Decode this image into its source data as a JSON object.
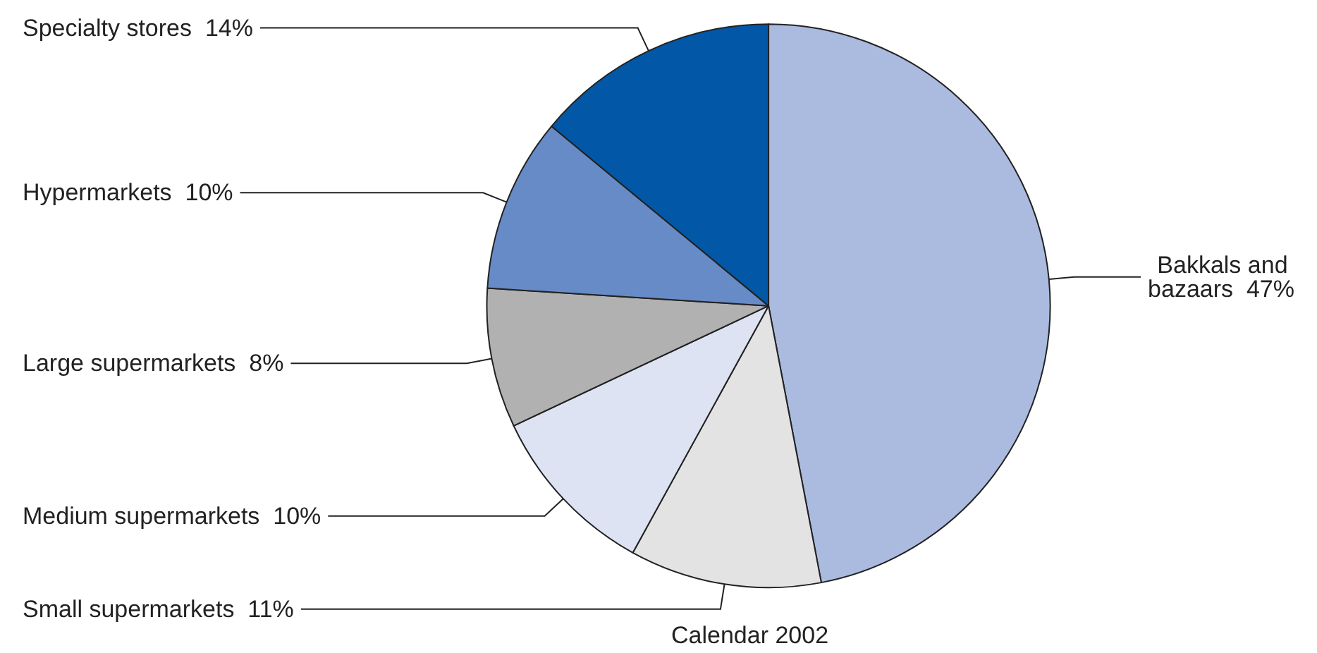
{
  "chart_data": {
    "type": "pie",
    "categories": [
      "Bakkals and bazaars",
      "Small supermarkets",
      "Medium supermarkets",
      "Large supermarkets",
      "Hypermarkets",
      "Specialty stores"
    ],
    "values": [
      47,
      11,
      10,
      8,
      10,
      14
    ],
    "value_labels": [
      "47%",
      "11%",
      "10%",
      "8%",
      "10%",
      "14%"
    ],
    "colors": [
      "#abbbdf",
      "#e3e3e3",
      "#dde3f3",
      "#b1b1b1",
      "#678bc6",
      "#0258a6"
    ],
    "annotations": [
      "Calendar 2002"
    ]
  }
}
